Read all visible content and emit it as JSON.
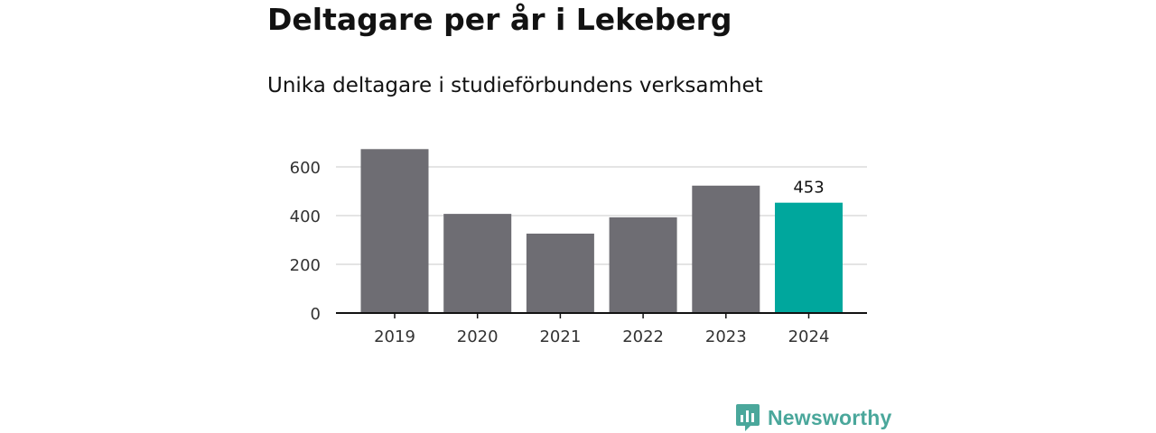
{
  "chart_data": {
    "type": "bar",
    "title": "Deltagare per år i Lekeberg",
    "subtitle": "Unika deltagare i studieförbundens verksamhet",
    "categories": [
      "2019",
      "2020",
      "2021",
      "2022",
      "2023",
      "2024"
    ],
    "values": [
      673,
      407,
      326,
      393,
      523,
      453
    ],
    "value_labels": {
      "2024": "453"
    },
    "highlight_category": "2024",
    "yticks": [
      0,
      200,
      400,
      600
    ],
    "ylim": [
      0,
      700
    ],
    "grid": true,
    "colors": {
      "bar": "#6e6d73",
      "highlight": "#00a79d",
      "grid": "#dcdcdc",
      "axis": "#121212"
    }
  },
  "brand": {
    "name": "Newsworthy",
    "icon": "newsworthy-logo-icon",
    "color": "#4aa79b"
  }
}
